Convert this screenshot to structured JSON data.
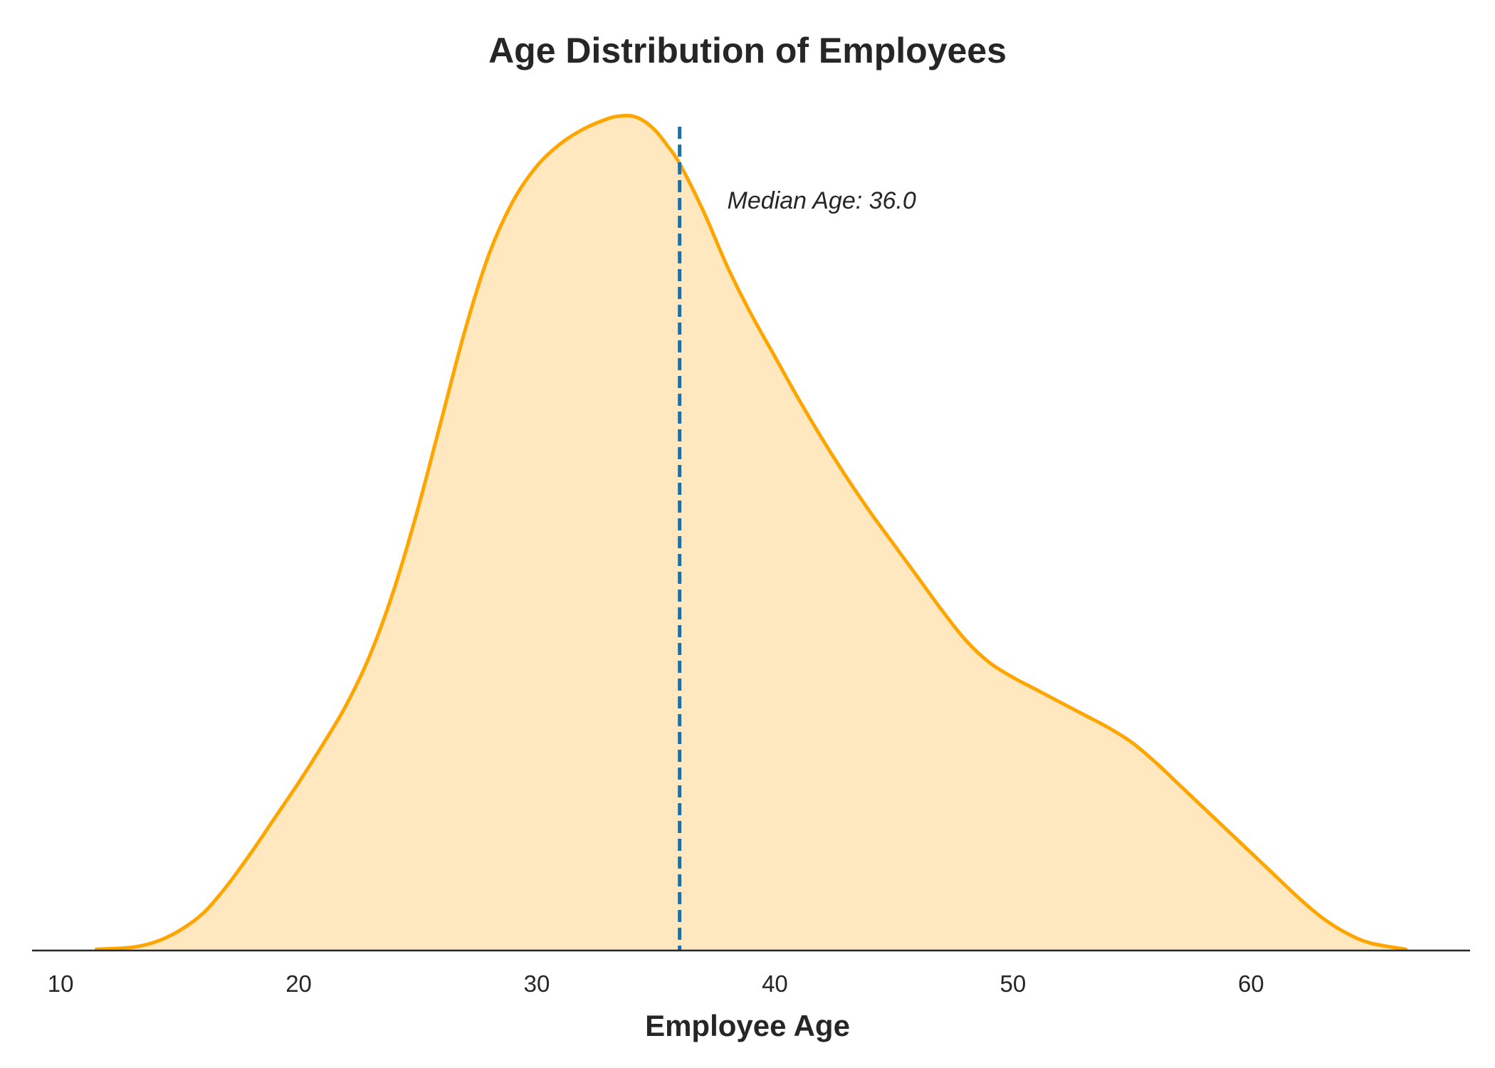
{
  "chart_data": {
    "type": "area",
    "title": "Age Distribution of Employees",
    "xlabel": "Employee Age",
    "ylabel": "",
    "xlim": [
      8.8,
      69.2
    ],
    "ylim": [
      0,
      0.0331
    ],
    "xticks": [
      10,
      20,
      30,
      40,
      50,
      60
    ],
    "xtick_labels": [
      "10",
      "20",
      "30",
      "40",
      "50",
      "60"
    ],
    "grid": false,
    "series": [
      {
        "fill_color": "#FFE8C0",
        "line_color": "#FFA500",
        "x": [
          11.5,
          13,
          14,
          15,
          16,
          17,
          18,
          19,
          20,
          21,
          22,
          23,
          24,
          25,
          26,
          27,
          28,
          29,
          30,
          31,
          32,
          33,
          33.5,
          34,
          34.5,
          35,
          35.5,
          36,
          37,
          38,
          39,
          40,
          41,
          42,
          43,
          44,
          45,
          46,
          47,
          48,
          49,
          50,
          51,
          52,
          53,
          54,
          55,
          56,
          57,
          58,
          59,
          60,
          61,
          62,
          63,
          64,
          65,
          66.5
        ],
        "y": [
          5e-05,
          0.00013,
          0.00035,
          0.0008,
          0.0015,
          0.0026,
          0.0039,
          0.0053,
          0.0067,
          0.0082,
          0.0098,
          0.0118,
          0.0144,
          0.0176,
          0.0212,
          0.0248,
          0.0278,
          0.0299,
          0.0313,
          0.0322,
          0.0328,
          0.0332,
          0.0333,
          0.0333,
          0.0331,
          0.0327,
          0.0321,
          0.0314,
          0.0295,
          0.0273,
          0.0254,
          0.0237,
          0.022,
          0.0204,
          0.0189,
          0.0175,
          0.0162,
          0.0149,
          0.0136,
          0.0124,
          0.0115,
          0.0109,
          0.0104,
          0.0099,
          0.0094,
          0.0089,
          0.0083,
          0.0075,
          0.0066,
          0.0057,
          0.0048,
          0.0039,
          0.003,
          0.0021,
          0.0013,
          0.0007,
          0.0003,
          5e-05
        ]
      }
    ],
    "reference_line": {
      "x": 36.0,
      "color": "#1F6FA0",
      "style": "dashed"
    },
    "annotation": {
      "text": "Median Age: 36.0",
      "x": 38.0,
      "y": 0.0296
    }
  }
}
